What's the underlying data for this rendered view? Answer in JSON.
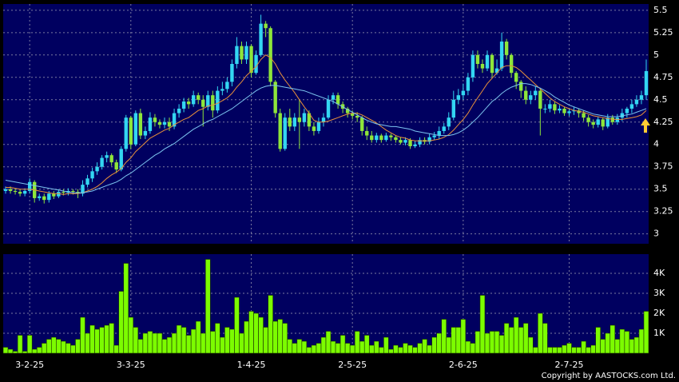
{
  "chart_data": [
    {
      "type": "candlestick",
      "up_color": "#33d6f2",
      "down_color": "#8ee63a",
      "ylim": [
        2.89,
        5.57
      ],
      "yticks": [
        3,
        3.25,
        3.5,
        3.75,
        4,
        4.25,
        4.5,
        4.75,
        5,
        5.25,
        5.5
      ],
      "grid": true,
      "open": [
        3.48,
        3.5,
        3.48,
        3.47,
        3.45,
        3.48,
        3.58,
        3.4,
        3.42,
        3.38,
        3.45,
        3.42,
        3.47,
        3.46,
        3.48,
        3.47,
        3.45,
        3.55,
        3.62,
        3.7,
        3.75,
        3.85,
        3.88,
        3.8,
        3.72,
        3.95,
        4.3,
        4.0,
        4.35,
        4.1,
        4.15,
        4.3,
        4.25,
        4.22,
        4.25,
        4.2,
        4.35,
        4.4,
        4.48,
        4.45,
        4.55,
        4.5,
        4.42,
        4.55,
        4.38,
        4.6,
        4.62,
        4.7,
        4.9,
        5.1,
        4.95,
        5.1,
        4.8,
        5.0,
        5.35,
        5.3,
        4.7,
        4.35,
        3.95,
        4.3,
        4.2,
        4.3,
        4.25,
        4.35,
        4.2,
        4.15,
        4.25,
        4.3,
        4.5,
        4.55,
        4.45,
        4.4,
        4.35,
        4.32,
        4.3,
        4.15,
        4.1,
        4.05,
        4.1,
        4.05,
        4.1,
        4.08,
        4.05,
        4.02,
        4.05,
        3.98,
        4.0,
        4.05,
        4.03,
        4.08,
        4.1,
        4.15,
        4.2,
        4.3,
        4.5,
        4.55,
        4.6,
        4.75,
        5.0,
        4.9,
        4.85,
        5.0,
        4.8,
        4.85,
        5.15,
        5.0,
        4.8,
        4.7,
        4.6,
        4.5,
        4.55,
        4.6,
        4.4,
        4.4,
        4.45,
        4.38,
        4.4,
        4.35,
        4.37,
        4.38,
        4.35,
        4.3,
        4.25,
        4.22,
        4.28,
        4.2,
        4.3,
        4.25,
        4.3,
        4.35,
        4.4,
        4.45,
        4.5,
        4.55
      ],
      "high": [
        3.53,
        3.53,
        3.51,
        3.5,
        3.51,
        3.62,
        3.6,
        3.45,
        3.45,
        3.48,
        3.48,
        3.5,
        3.5,
        3.51,
        3.5,
        3.5,
        3.6,
        3.66,
        3.74,
        3.8,
        3.88,
        3.92,
        3.9,
        3.83,
        3.98,
        4.33,
        4.32,
        4.38,
        4.4,
        4.2,
        4.36,
        4.34,
        4.28,
        4.3,
        4.3,
        4.4,
        4.45,
        4.52,
        4.52,
        4.6,
        4.58,
        4.55,
        4.6,
        4.6,
        4.65,
        4.7,
        4.75,
        4.95,
        5.2,
        5.15,
        5.15,
        5.12,
        5.05,
        5.45,
        5.38,
        5.32,
        4.72,
        4.4,
        4.35,
        4.4,
        4.35,
        4.5,
        4.4,
        4.38,
        4.25,
        4.3,
        4.35,
        4.55,
        4.58,
        4.58,
        4.48,
        4.42,
        4.38,
        4.36,
        4.32,
        4.2,
        4.15,
        4.13,
        4.12,
        4.13,
        4.12,
        4.1,
        4.08,
        4.08,
        4.07,
        4.04,
        4.08,
        4.08,
        4.12,
        4.14,
        4.2,
        4.24,
        4.36,
        4.6,
        4.62,
        4.68,
        4.8,
        5.05,
        5.05,
        4.95,
        5.05,
        5.02,
        4.95,
        5.25,
        5.18,
        5.02,
        4.82,
        4.72,
        4.65,
        4.6,
        4.65,
        4.62,
        4.45,
        4.5,
        4.48,
        4.44,
        4.42,
        4.4,
        4.42,
        4.4,
        4.38,
        4.33,
        4.28,
        4.31,
        4.3,
        4.34,
        4.33,
        4.34,
        4.4,
        4.42,
        4.5,
        4.55,
        4.6,
        4.95
      ],
      "low": [
        3.45,
        3.45,
        3.44,
        3.42,
        3.42,
        3.45,
        3.35,
        3.37,
        3.34,
        3.35,
        3.39,
        3.4,
        3.43,
        3.43,
        3.44,
        3.4,
        3.42,
        3.52,
        3.58,
        3.66,
        3.72,
        3.8,
        3.76,
        3.68,
        3.7,
        3.92,
        3.95,
        3.98,
        4.06,
        4.06,
        4.12,
        4.2,
        4.18,
        4.18,
        4.15,
        4.17,
        4.3,
        4.36,
        4.4,
        4.42,
        4.45,
        4.2,
        4.38,
        4.3,
        4.35,
        4.55,
        4.58,
        4.65,
        4.85,
        4.9,
        4.9,
        4.75,
        4.78,
        4.98,
        5.2,
        4.65,
        4.3,
        3.92,
        3.93,
        4.15,
        4.15,
        3.95,
        4.2,
        4.15,
        4.1,
        4.12,
        4.2,
        4.28,
        4.45,
        4.4,
        4.35,
        4.3,
        4.28,
        4.25,
        4.1,
        4.05,
        4.02,
        4.02,
        4.02,
        4.03,
        4.04,
        4.02,
        4.0,
        3.99,
        3.95,
        3.96,
        3.97,
        4.0,
        4.0,
        4.05,
        4.06,
        4.12,
        4.16,
        4.27,
        4.45,
        4.5,
        4.55,
        4.7,
        4.85,
        4.8,
        4.82,
        4.75,
        4.78,
        4.82,
        4.95,
        4.75,
        4.62,
        4.52,
        4.45,
        4.45,
        4.5,
        4.1,
        4.35,
        4.36,
        4.34,
        4.35,
        4.32,
        4.32,
        4.33,
        4.3,
        4.26,
        4.2,
        4.18,
        4.19,
        4.16,
        4.18,
        4.22,
        4.22,
        4.26,
        4.3,
        4.35,
        4.42,
        4.45,
        4.5
      ],
      "close": [
        3.5,
        3.48,
        3.47,
        3.45,
        3.48,
        3.58,
        3.4,
        3.42,
        3.38,
        3.45,
        3.42,
        3.47,
        3.46,
        3.48,
        3.47,
        3.45,
        3.55,
        3.62,
        3.7,
        3.75,
        3.85,
        3.88,
        3.8,
        3.72,
        3.95,
        4.3,
        4.0,
        4.35,
        4.1,
        4.15,
        4.3,
        4.25,
        4.22,
        4.25,
        4.2,
        4.35,
        4.4,
        4.48,
        4.45,
        4.55,
        4.5,
        4.42,
        4.55,
        4.38,
        4.6,
        4.62,
        4.7,
        4.9,
        5.1,
        4.95,
        5.1,
        4.8,
        5.0,
        5.35,
        5.3,
        4.7,
        4.35,
        3.95,
        4.3,
        4.2,
        4.3,
        4.25,
        4.35,
        4.2,
        4.15,
        4.25,
        4.3,
        4.5,
        4.55,
        4.45,
        4.4,
        4.35,
        4.32,
        4.3,
        4.15,
        4.1,
        4.05,
        4.1,
        4.05,
        4.1,
        4.08,
        4.05,
        4.02,
        4.05,
        3.98,
        4.0,
        4.05,
        4.03,
        4.08,
        4.1,
        4.15,
        4.2,
        4.3,
        4.5,
        4.55,
        4.6,
        4.75,
        5.0,
        4.9,
        4.85,
        5.0,
        4.8,
        4.85,
        5.15,
        5.0,
        4.8,
        4.7,
        4.6,
        4.5,
        4.55,
        4.6,
        4.4,
        4.4,
        4.45,
        4.38,
        4.4,
        4.35,
        4.37,
        4.38,
        4.35,
        4.3,
        4.25,
        4.22,
        4.28,
        4.2,
        4.3,
        4.25,
        4.3,
        4.35,
        4.4,
        4.45,
        4.5,
        4.55,
        4.82
      ],
      "series": [
        {
          "color": "#e8903a",
          "values": [
            3.52,
            3.52,
            3.51,
            3.5,
            3.5,
            3.5,
            3.49,
            3.48,
            3.47,
            3.46,
            3.45,
            3.45,
            3.44,
            3.45,
            3.45,
            3.45,
            3.46,
            3.48,
            3.5,
            3.53,
            3.57,
            3.62,
            3.66,
            3.69,
            3.73,
            3.8,
            3.85,
            3.92,
            3.97,
            4.02,
            4.07,
            4.1,
            4.13,
            4.16,
            4.18,
            4.22,
            4.25,
            4.28,
            4.3,
            4.34,
            4.38,
            4.4,
            4.43,
            4.44,
            4.46,
            4.49,
            4.52,
            4.57,
            4.64,
            4.7,
            4.77,
            4.82,
            4.87,
            4.95,
            5.0,
            4.97,
            4.9,
            4.8,
            4.72,
            4.65,
            4.58,
            4.5,
            4.42,
            4.35,
            4.27,
            4.25,
            4.25,
            4.26,
            4.28,
            4.3,
            4.32,
            4.34,
            4.35,
            4.35,
            4.33,
            4.3,
            4.27,
            4.24,
            4.2,
            4.16,
            4.13,
            4.1,
            4.08,
            4.07,
            4.05,
            4.04,
            4.04,
            4.04,
            4.04,
            4.05,
            4.06,
            4.08,
            4.11,
            4.16,
            4.22,
            4.28,
            4.35,
            4.44,
            4.52,
            4.6,
            4.68,
            4.74,
            4.8,
            4.86,
            4.88,
            4.88,
            4.86,
            4.82,
            4.77,
            4.72,
            4.67,
            4.62,
            4.57,
            4.52,
            4.48,
            4.45,
            4.42,
            4.4,
            4.38,
            4.37,
            4.36,
            4.34,
            4.32,
            4.31,
            4.3,
            4.29,
            4.28,
            4.28,
            4.28,
            4.29,
            4.3,
            4.31,
            4.33,
            4.38
          ]
        },
        {
          "color": "#7cc4ee",
          "values": [
            3.6,
            3.59,
            3.58,
            3.57,
            3.56,
            3.55,
            3.54,
            3.53,
            3.52,
            3.51,
            3.5,
            3.49,
            3.48,
            3.47,
            3.46,
            3.46,
            3.46,
            3.47,
            3.48,
            3.5,
            3.52,
            3.54,
            3.56,
            3.58,
            3.61,
            3.65,
            3.68,
            3.72,
            3.76,
            3.8,
            3.84,
            3.88,
            3.91,
            3.95,
            3.98,
            4.01,
            4.05,
            4.09,
            4.13,
            4.17,
            4.2,
            4.23,
            4.26,
            4.28,
            4.31,
            4.34,
            4.37,
            4.4,
            4.44,
            4.48,
            4.52,
            4.56,
            4.6,
            4.63,
            4.65,
            4.66,
            4.66,
            4.65,
            4.64,
            4.63,
            4.62,
            4.61,
            4.6,
            4.58,
            4.56,
            4.54,
            4.52,
            4.5,
            4.48,
            4.45,
            4.42,
            4.39,
            4.36,
            4.33,
            4.3,
            4.27,
            4.25,
            4.23,
            4.22,
            4.21,
            4.2,
            4.2,
            4.19,
            4.18,
            4.17,
            4.15,
            4.14,
            4.13,
            4.12,
            4.11,
            4.1,
            4.1,
            4.1,
            4.11,
            4.13,
            4.16,
            4.2,
            4.25,
            4.3,
            4.36,
            4.42,
            4.48,
            4.52,
            4.57,
            4.61,
            4.64,
            4.66,
            4.68,
            4.68,
            4.67,
            4.65,
            4.63,
            4.6,
            4.57,
            4.53,
            4.5,
            4.47,
            4.44,
            4.42,
            4.4,
            4.38,
            4.36,
            4.34,
            4.33,
            4.32,
            4.31,
            4.31,
            4.31,
            4.32,
            4.33,
            4.34,
            4.36,
            4.38,
            4.4
          ]
        }
      ]
    },
    {
      "type": "bar",
      "color": "#7cfc00",
      "ylim": [
        0,
        4960
      ],
      "yticks": [
        {
          "value": 1000,
          "label": "1K"
        },
        {
          "value": 2000,
          "label": "2K"
        },
        {
          "value": 3000,
          "label": "3K"
        },
        {
          "value": 4000,
          "label": "4K"
        }
      ],
      "grid": true,
      "categories": [
        null,
        null,
        null,
        null,
        null,
        "3-2-25",
        null,
        null,
        null,
        null,
        null,
        null,
        null,
        null,
        null,
        null,
        null,
        null,
        null,
        null,
        null,
        null,
        null,
        null,
        null,
        null,
        "3-3-25",
        null,
        null,
        null,
        null,
        null,
        null,
        null,
        null,
        null,
        null,
        null,
        null,
        null,
        null,
        null,
        null,
        null,
        null,
        null,
        null,
        null,
        null,
        null,
        null,
        "1-4-25",
        null,
        null,
        null,
        null,
        null,
        null,
        null,
        null,
        null,
        null,
        null,
        null,
        null,
        null,
        null,
        null,
        null,
        null,
        null,
        null,
        "2-5-25",
        null,
        null,
        null,
        null,
        null,
        null,
        null,
        null,
        null,
        null,
        null,
        null,
        null,
        null,
        null,
        null,
        null,
        null,
        null,
        null,
        null,
        null,
        "2-6-25",
        null,
        null,
        null,
        null,
        null,
        null,
        null,
        null,
        null,
        null,
        null,
        null,
        null,
        null,
        null,
        null,
        null,
        null,
        null,
        null,
        null,
        "2-7-25",
        null,
        null,
        null,
        null,
        null,
        null,
        null,
        null,
        null,
        null,
        null,
        null,
        null,
        null,
        null,
        null
      ],
      "values": [
        300,
        200,
        100,
        900,
        100,
        900,
        200,
        300,
        500,
        700,
        800,
        700,
        600,
        500,
        400,
        700,
        1800,
        1000,
        1400,
        1200,
        1300,
        1400,
        1500,
        400,
        3100,
        4500,
        1800,
        1300,
        700,
        1000,
        1100,
        1000,
        1000,
        700,
        800,
        1000,
        1400,
        1300,
        900,
        1200,
        1600,
        1000,
        4700,
        1100,
        1500,
        800,
        1300,
        1200,
        2800,
        1000,
        1600,
        2100,
        2000,
        1800,
        1300,
        2900,
        1600,
        1700,
        1500,
        700,
        500,
        700,
        600,
        300,
        400,
        500,
        800,
        1100,
        600,
        500,
        900,
        500,
        400,
        1100,
        600,
        900,
        400,
        600,
        300,
        800,
        200,
        400,
        300,
        500,
        400,
        300,
        500,
        700,
        400,
        800,
        1000,
        1700,
        800,
        1300,
        1300,
        1700,
        600,
        500,
        1100,
        2900,
        1000,
        1100,
        1100,
        900,
        1500,
        1300,
        1800,
        1300,
        1500,
        800,
        300,
        2000,
        1500,
        300,
        300,
        300,
        400,
        500,
        300,
        300,
        600,
        300,
        400,
        1300,
        700,
        1000,
        1400,
        700,
        1200,
        1100,
        700,
        800,
        1200,
        2100
      ]
    }
  ],
  "copyright": "Copyright by AASTOCKS.com Ltd."
}
